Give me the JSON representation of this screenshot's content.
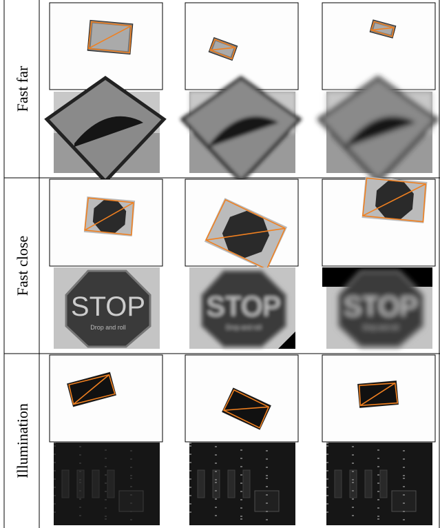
{
  "rows": [
    {
      "label": "Fast far"
    },
    {
      "label": "Fast close"
    },
    {
      "label": "Illumination"
    }
  ],
  "sign_text": "STOP",
  "sign_subtext": "Drop and roll"
}
